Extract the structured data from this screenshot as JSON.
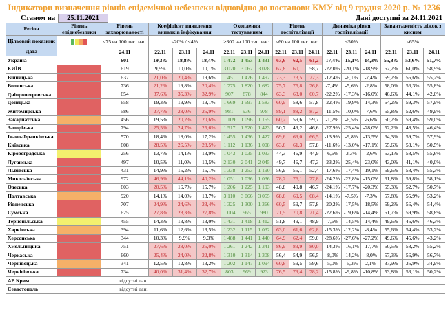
{
  "title": "Індикатори визначення рівнів епідемічної небезпеки відповідно до постанови КМУ від 9 грудня 2020 р. № 1236",
  "as_of_label": "Станом на",
  "as_of_date": "25.11.2021",
  "available": "Дані доступні за 24.11.2021",
  "headers": {
    "region": "Регіон",
    "level": "Рівень епіднебезпеки",
    "incidence": "Рівень захворюваності",
    "coef": "Коефіцієнт виявлення випадків інфікування",
    "testing": "Охоплення тестуванням",
    "hosp": "Рівень госпіталізації",
    "dynamics": "Динаміка рівня госпіталізації",
    "beds": "Завантаженість ліжок з киснем"
  },
  "target": {
    "label": "Цільовий показник",
    "incidence": "<75 на 100 тис. нас.",
    "coef": "≤20% / <4%",
    "testing": "≥300 на 100 тис. нас.",
    "hosp": "≤60 на 100 тис. нас.",
    "dynamics": "≤50%",
    "beds": "≤65%",
    "level_colors": [
      "#5cb85c",
      "#f2e85a",
      "#f4a460",
      "#e05555"
    ]
  },
  "date_label": "Дата",
  "dates3": [
    "22.11",
    "23.11",
    "24.11"
  ],
  "date1": "24.11",
  "thresholds": {
    "coef": 20,
    "hosp": 60
  },
  "level_colors": {
    "red": "#e06262",
    "orange": "#f5b068",
    "yellow": "#f3f06e"
  },
  "missing_text": "відсутні дані",
  "rows": [
    {
      "name": "Україна",
      "level": "",
      "inc": "601",
      "coef": [
        "19,3%",
        "18,8%",
        "18,4%"
      ],
      "test": [
        "1 472",
        "1 453",
        "1 431"
      ],
      "hosp": [
        "63,6",
        "62,5",
        "61,2"
      ],
      "dyn": [
        "-17,4%",
        "-15,1%",
        "-14,3%"
      ],
      "beds": [
        "55,8%",
        "53,6%",
        "51,7%"
      ]
    },
    {
      "name": "КИЇВ",
      "level": "red",
      "inc": "619",
      "coef": [
        "9,9%",
        "10,0%",
        "10,1%"
      ],
      "test": [
        "3 020",
        "3 062",
        "3 078"
      ],
      "hosp": [
        "62,8",
        "60,1",
        "58,7"
      ],
      "dyn": [
        "-22,0%",
        "-20,1%",
        "-18,9%"
      ],
      "beds": [
        "62,2%",
        "61,0%",
        "58,9%"
      ]
    },
    {
      "name": "Вінницька",
      "level": "red",
      "inc": "637",
      "coef": [
        "21,0%",
        "20,4%",
        "19,6%"
      ],
      "test": [
        "1 451",
        "1 476",
        "1 492"
      ],
      "hosp": [
        "73,3",
        "73,5",
        "72,3"
      ],
      "dyn": [
        "-12,4%",
        "-6,1%",
        "-7,4%"
      ],
      "beds": [
        "59,2%",
        "56,6%",
        "55,2%"
      ]
    },
    {
      "name": "Волинська",
      "level": "red",
      "inc": "736",
      "coef": [
        "21,2%",
        "19,8%",
        "20,4%"
      ],
      "test": [
        "1 775",
        "1 820",
        "1 682"
      ],
      "hosp": [
        "75,7",
        "75,8",
        "76,8"
      ],
      "dyn": [
        "-7,4%",
        "-5,6%",
        "-2,8%"
      ],
      "beds": [
        "58,0%",
        "56,3%",
        "55,8%"
      ]
    },
    {
      "name": "Дніпропетровська",
      "level": "red",
      "inc": "654",
      "coef": [
        "37,6%",
        "35,3%",
        "32,9%"
      ],
      "test": [
        "907",
        "878",
        "844"
      ],
      "hosp": [
        "63,3",
        "63,0",
        "60,7"
      ],
      "dyn": [
        "-22,2%",
        "-17,3%",
        "-16,0%"
      ],
      "beds": [
        "46,6%",
        "44,1%",
        "42,0%"
      ]
    },
    {
      "name": "Донецька",
      "level": "red",
      "inc": "658",
      "coef": [
        "19,3%",
        "19,9%",
        "19,1%"
      ],
      "test": [
        "1 669",
        "1 597",
        "1 583"
      ],
      "hosp": [
        "60,9",
        "58,6",
        "57,8"
      ],
      "dyn": [
        "-22,4%",
        "-19,9%",
        "-14,3%"
      ],
      "beds": [
        "64,2%",
        "59,3%",
        "57,9%"
      ]
    },
    {
      "name": "Житомирська",
      "level": "red",
      "inc": "586",
      "coef": [
        "27,7%",
        "28,0%",
        "25,9%"
      ],
      "test": [
        "981",
        "936",
        "978"
      ],
      "hosp": [
        "89,1",
        "88,2",
        "87,2"
      ],
      "dyn": [
        "-11,5%",
        "-10,0%",
        "-7,6%"
      ],
      "beds": [
        "55,8%",
        "52,6%",
        "49,9%"
      ]
    },
    {
      "name": "Закарпатська",
      "level": "orange",
      "inc": "456",
      "coef": [
        "19,5%",
        "20,2%",
        "20,6%"
      ],
      "test": [
        "1 109",
        "1 096",
        "1 155"
      ],
      "hosp": [
        "60,2",
        "59,6",
        "59,7"
      ],
      "dyn": [
        "-1,7%",
        "-6,5%",
        "-6,6%"
      ],
      "beds": [
        "60,2%",
        "59,4%",
        "59,0%"
      ]
    },
    {
      "name": "Запорізька",
      "level": "red",
      "inc": "794",
      "coef": [
        "25,5%",
        "24,7%",
        "25,6%"
      ],
      "test": [
        "1 517",
        "1 520",
        "1 423"
      ],
      "hosp": [
        "50,7",
        "49,2",
        "46,6"
      ],
      "dyn": [
        "-27,9%",
        "-25,4%",
        "-28,0%"
      ],
      "beds": [
        "52,2%",
        "48,5%",
        "46,4%"
      ]
    },
    {
      "name": "Івано-Франківська",
      "level": "red",
      "inc": "570",
      "coef": [
        "18,4%",
        "18,0%",
        "17,2%"
      ],
      "test": [
        "1 455",
        "1 436",
        "1 427"
      ],
      "hosp": [
        "69,6",
        "69,0",
        "66,5"
      ],
      "dyn": [
        "-13,9%",
        "-9,8%",
        "-13,5%"
      ],
      "beds": [
        "64,3%",
        "59,7%",
        "57,9%"
      ]
    },
    {
      "name": "Київська",
      "level": "red",
      "inc": "608",
      "coef": [
        "28,5%",
        "26,5%",
        "28,5%"
      ],
      "test": [
        "1 112",
        "1 136",
        "1 008"
      ],
      "hosp": [
        "63,6",
        "61,3",
        "57,8"
      ],
      "dyn": [
        "-11,6%",
        "-13,0%",
        "-17,1%"
      ],
      "beds": [
        "55,6%",
        "53,1%",
        "50,5%"
      ]
    },
    {
      "name": "Кіровоградська",
      "level": "yellow",
      "inc": "256",
      "coef": [
        "13,7%",
        "14,1%",
        "13,9%"
      ],
      "test": [
        "1 043",
        "1 035",
        "1 033"
      ],
      "hosp": [
        "44,3",
        "46,9",
        "44,9"
      ],
      "dyn": [
        "-6,6%",
        "3,3%",
        "-2,6%"
      ],
      "beds": [
        "53,1%",
        "58,5%",
        "55,6%"
      ]
    },
    {
      "name": "Луганська",
      "level": "red",
      "inc": "497",
      "coef": [
        "10,5%",
        "11,0%",
        "10,5%"
      ],
      "test": [
        "2 130",
        "2 041",
        "2 045"
      ],
      "hosp": [
        "49,7",
        "46,7",
        "47,3"
      ],
      "dyn": [
        "-23,2%",
        "-25,4%",
        "-23,0%"
      ],
      "beds": [
        "43,0%",
        "41,1%",
        "40,0%"
      ]
    },
    {
      "name": "Львівська",
      "level": "red",
      "inc": "431",
      "coef": [
        "14,9%",
        "15,2%",
        "16,1%"
      ],
      "test": [
        "1 338",
        "1 253",
        "1 190"
      ],
      "hosp": [
        "56,9",
        "55,1",
        "52,4"
      ],
      "dyn": [
        "-17,6%",
        "-17,4%",
        "-19,1%"
      ],
      "beds": [
        "59,6%",
        "58,4%",
        "55,3%"
      ]
    },
    {
      "name": "Миколаївська",
      "level": "red",
      "inc": "972",
      "coef": [
        "46,9%",
        "44,1%",
        "40,2%"
      ],
      "test": [
        "1 051",
        "1 036",
        "1 036"
      ],
      "hosp": [
        "78,2",
        "76,1",
        "77,8"
      ],
      "dyn": [
        "-24,2%",
        "-22,8%",
        "-15,0%"
      ],
      "beds": [
        "61,8%",
        "59,8%",
        "58,1%"
      ]
    },
    {
      "name": "Одеська",
      "level": "red",
      "inc": "603",
      "coef": [
        "20,5%",
        "16,7%",
        "15,7%"
      ],
      "test": [
        "1 206",
        "1 225",
        "1 193"
      ],
      "hosp": [
        "48,8",
        "49,8",
        "46,7"
      ],
      "dyn": [
        "-24,1%",
        "-17,7%",
        "-20,3%"
      ],
      "beds": [
        "55,3%",
        "52,7%",
        "50,7%"
      ]
    },
    {
      "name": "Полтавська",
      "level": "orange",
      "inc": "920",
      "coef": [
        "14,1%",
        "14,0%",
        "13,7%"
      ],
      "test": [
        "3 110",
        "3 066",
        "3 055"
      ],
      "hosp": [
        "68,6",
        "69,5",
        "68,4"
      ],
      "dyn": [
        "-14,1%",
        "-7,5%",
        "-7,3%"
      ],
      "beds": [
        "57,8%",
        "55,9%",
        "53,2%"
      ]
    },
    {
      "name": "Рівненська",
      "level": "red",
      "inc": "707",
      "coef": [
        "24,9%",
        "24,6%",
        "23,4%"
      ],
      "test": [
        "1 325",
        "1 300",
        "1 366"
      ],
      "hosp": [
        "60,5",
        "59,7",
        "57,8"
      ],
      "dyn": [
        "-20,2%",
        "-17,5%",
        "-18,5%"
      ],
      "beds": [
        "59,2%",
        "56,4%",
        "54,4%"
      ]
    },
    {
      "name": "Сумська",
      "level": "red",
      "inc": "625",
      "coef": [
        "27,8%",
        "28,3%",
        "27,8%"
      ],
      "test": [
        "1 004",
        "965",
        "980"
      ],
      "hosp": [
        "71,5",
        "70,8",
        "71,4"
      ],
      "dyn": [
        "-22,6%",
        "-19,6%",
        "-14,4%"
      ],
      "beds": [
        "61,7%",
        "59,9%",
        "58,8%"
      ]
    },
    {
      "name": "Тернопільська",
      "level": "yellow",
      "inc": "455",
      "coef": [
        "14,3%",
        "13,8%",
        "13,0%"
      ],
      "test": [
        "1 431",
        "1 418",
        "1 412"
      ],
      "hosp": [
        "51,8",
        "49,1",
        "48,9"
      ],
      "dyn": [
        "-7,6%",
        "-14,5%",
        "-14,4%"
      ],
      "beds": [
        "49,6%",
        "46,6%",
        "46,3%"
      ]
    },
    {
      "name": "Харківська",
      "level": "orange",
      "inc": "394",
      "coef": [
        "11,6%",
        "12,6%",
        "13,5%"
      ],
      "test": [
        "1 232",
        "1 115",
        "1 032"
      ],
      "hosp": [
        "63,0",
        "61,6",
        "62,8"
      ],
      "dyn": [
        "-15,3%",
        "-12,2%",
        "-8,4%"
      ],
      "beds": [
        "55,6%",
        "54,4%",
        "53,2%"
      ]
    },
    {
      "name": "Херсонська",
      "level": "red",
      "inc": "344",
      "coef": [
        "10,3%",
        "9,9%",
        "9,3%"
      ],
      "test": [
        "1 488",
        "1 441",
        "1 440"
      ],
      "hosp": [
        "64,9",
        "62,4",
        "59,0"
      ],
      "dyn": [
        "-28,6%",
        "-27,6%",
        "-27,2%"
      ],
      "beds": [
        "49,6%",
        "45,6%",
        "43,2%"
      ]
    },
    {
      "name": "Хмельницька",
      "level": "red",
      "inc": "751",
      "coef": [
        "27,6%",
        "28,0%",
        "25,0%"
      ],
      "test": [
        "1 261",
        "1 242",
        "1 341"
      ],
      "hosp": [
        "86,9",
        "83,9",
        "80,0"
      ],
      "dyn": [
        "-14,3%",
        "-16,1%",
        "-17,7%"
      ],
      "beds": [
        "60,5%",
        "58,2%",
        "55,2%"
      ]
    },
    {
      "name": "Черкаська",
      "level": "red",
      "inc": "660",
      "coef": [
        "25,4%",
        "24,0%",
        "22,8%"
      ],
      "test": [
        "1 310",
        "1 314",
        "1 308"
      ],
      "hosp": [
        "56,4",
        "54,9",
        "56,5"
      ],
      "dyn": [
        "-8,0%",
        "-14,2%",
        "-8,0%"
      ],
      "beds": [
        "57,3%",
        "56,9%",
        "56,7%"
      ]
    },
    {
      "name": "Чернівецька",
      "level": "orange",
      "inc": "341",
      "coef": [
        "12,5%",
        "12,8%",
        "13,2%"
      ],
      "test": [
        "1 202",
        "1 147",
        "1 094"
      ],
      "hosp": [
        "60,8",
        "59,5",
        "59,6"
      ],
      "dyn": [
        "-5,0%",
        "-5,3%",
        "2,1%"
      ],
      "beds": [
        "37,9%",
        "35,9%",
        "34,9%"
      ]
    },
    {
      "name": "Чернігівська",
      "level": "red",
      "inc": "734",
      "coef": [
        "40,0%",
        "31,4%",
        "32,7%"
      ],
      "test": [
        "803",
        "969",
        "923"
      ],
      "hosp": [
        "76,5",
        "79,4",
        "78,2"
      ],
      "dyn": [
        "-15,8%",
        "-9,8%",
        "-10,8%"
      ],
      "beds": [
        "53,8%",
        "53,1%",
        "50,2%"
      ]
    }
  ],
  "missing_rows": [
    "АР Крим",
    "Севастополь"
  ]
}
